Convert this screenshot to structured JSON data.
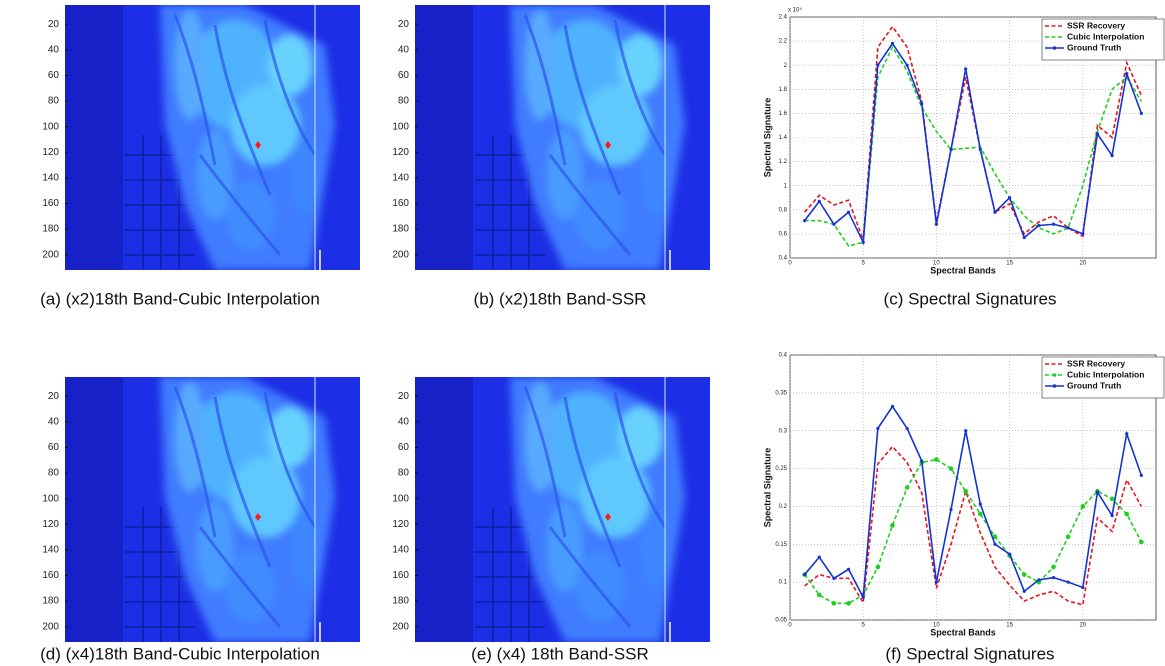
{
  "images": [
    {
      "caption": "(a) (x2)18th Band-Cubic Interpolation",
      "ylim": [
        5,
        212
      ],
      "yticks": [
        20,
        40,
        60,
        80,
        100,
        120,
        140,
        160,
        180,
        200
      ]
    },
    {
      "caption": "(b) (x2)18th Band-SSR",
      "ylim": [
        5,
        212
      ],
      "yticks": [
        20,
        40,
        60,
        80,
        100,
        120,
        140,
        160,
        180,
        200
      ]
    },
    {
      "caption": "(d)  (x4)18th Band-Cubic Interpolation",
      "ylim": [
        5,
        212
      ],
      "yticks": [
        20,
        40,
        60,
        80,
        100,
        120,
        140,
        160,
        180,
        200
      ]
    },
    {
      "caption": "(e)  (x4) 18th Band-SSR",
      "ylim": [
        5,
        212
      ],
      "yticks": [
        20,
        40,
        60,
        80,
        100,
        120,
        140,
        160,
        180,
        200
      ]
    }
  ],
  "chart_data": [
    {
      "type": "line",
      "caption": "(c) Spectral Signatures",
      "xlabel": "Spectral Bands",
      "ylabel": "Spectral Signature",
      "y_multiplier": "x 10⁴",
      "x": [
        1,
        2,
        3,
        4,
        5,
        6,
        7,
        8,
        9,
        10,
        11,
        12,
        13,
        14,
        15,
        16,
        17,
        18,
        19,
        20,
        21,
        22,
        23,
        24
      ],
      "xlim": [
        0,
        25
      ],
      "xticks": [
        0,
        5,
        10,
        15,
        20
      ],
      "ylim": [
        0.4,
        2.4
      ],
      "yticks": [
        0.4,
        0.6,
        0.8,
        1,
        1.2,
        1.4,
        1.6,
        1.8,
        2,
        2.2,
        2.4
      ],
      "grid": true,
      "legend": "upper right",
      "series": [
        {
          "name": "SSR Recovery",
          "color": "#e8141c",
          "dash": true,
          "marker": "none",
          "values": [
            0.78,
            0.92,
            0.84,
            0.88,
            0.55,
            2.15,
            2.32,
            2.15,
            1.7,
            0.7,
            1.3,
            1.9,
            1.3,
            0.78,
            0.85,
            0.6,
            0.7,
            0.75,
            0.65,
            0.58,
            1.5,
            1.4,
            2.02,
            1.75
          ]
        },
        {
          "name": "Cubic Interpolation",
          "color": "#1ed01e",
          "dash": true,
          "marker": "none",
          "values": [
            0.71,
            0.71,
            0.68,
            0.5,
            0.53,
            1.9,
            2.15,
            1.95,
            1.65,
            1.45,
            1.3,
            1.31,
            1.32,
            1.1,
            0.9,
            0.75,
            0.65,
            0.6,
            0.65,
            1.0,
            1.45,
            1.8,
            1.9,
            1.7
          ]
        },
        {
          "name": "Ground Truth",
          "color": "#1433d6",
          "dash": false,
          "marker": "dot",
          "values": [
            0.71,
            0.87,
            0.68,
            0.78,
            0.53,
            2.0,
            2.18,
            2.0,
            1.68,
            0.68,
            1.3,
            1.97,
            1.3,
            0.78,
            0.9,
            0.57,
            0.67,
            0.68,
            0.65,
            0.6,
            1.43,
            1.25,
            1.93,
            1.6
          ]
        }
      ]
    },
    {
      "type": "line",
      "caption": "(f) Spectral Signatures",
      "xlabel": "Spectral Bands",
      "ylabel": "Spectral Signature",
      "x": [
        1,
        2,
        3,
        4,
        5,
        6,
        7,
        8,
        9,
        10,
        11,
        12,
        13,
        14,
        15,
        16,
        17,
        18,
        19,
        20,
        21,
        22,
        23,
        24
      ],
      "xlim": [
        0,
        25
      ],
      "xticks": [
        0,
        5,
        10,
        15,
        20
      ],
      "ylim": [
        0.05,
        0.4
      ],
      "yticks": [
        0.05,
        0.1,
        0.15,
        0.2,
        0.25,
        0.3,
        0.35,
        0.4
      ],
      "grid": true,
      "legend": "upper right",
      "series": [
        {
          "name": "SSR Recovery",
          "color": "#e8141c",
          "dash": true,
          "marker": "none",
          "values": [
            0.095,
            0.11,
            0.105,
            0.105,
            0.073,
            0.256,
            0.279,
            0.258,
            0.218,
            0.092,
            0.15,
            0.22,
            0.165,
            0.12,
            0.096,
            0.075,
            0.083,
            0.088,
            0.075,
            0.07,
            0.185,
            0.167,
            0.235,
            0.2
          ]
        },
        {
          "name": "Cubic Interpolation",
          "color": "#1ed01e",
          "dash": true,
          "marker": "circle",
          "values": [
            0.11,
            0.083,
            0.072,
            0.072,
            0.083,
            0.12,
            0.175,
            0.225,
            0.258,
            0.262,
            0.25,
            0.22,
            0.19,
            0.16,
            0.135,
            0.11,
            0.1,
            0.12,
            0.16,
            0.2,
            0.22,
            0.21,
            0.19,
            0.153
          ]
        },
        {
          "name": "Ground Truth",
          "color": "#1433d6",
          "dash": false,
          "marker": "dot",
          "values": [
            0.11,
            0.133,
            0.105,
            0.117,
            0.08,
            0.303,
            0.332,
            0.303,
            0.26,
            0.1,
            0.196,
            0.3,
            0.203,
            0.15,
            0.137,
            0.088,
            0.103,
            0.106,
            0.1,
            0.093,
            0.219,
            0.188,
            0.296,
            0.241
          ]
        }
      ]
    }
  ]
}
